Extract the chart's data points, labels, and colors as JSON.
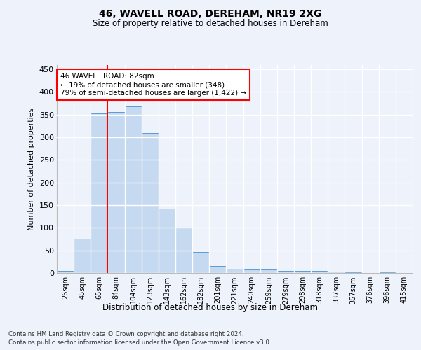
{
  "title1": "46, WAVELL ROAD, DEREHAM, NR19 2XG",
  "title2": "Size of property relative to detached houses in Dereham",
  "xlabel": "Distribution of detached houses by size in Dereham",
  "ylabel": "Number of detached properties",
  "categories": [
    "26sqm",
    "45sqm",
    "65sqm",
    "84sqm",
    "104sqm",
    "123sqm",
    "143sqm",
    "162sqm",
    "182sqm",
    "201sqm",
    "221sqm",
    "240sqm",
    "259sqm",
    "279sqm",
    "298sqm",
    "318sqm",
    "337sqm",
    "357sqm",
    "376sqm",
    "396sqm",
    "415sqm"
  ],
  "values": [
    5,
    75,
    353,
    355,
    368,
    310,
    143,
    100,
    46,
    16,
    10,
    8,
    8,
    4,
    5,
    5,
    3,
    1,
    0,
    1,
    0
  ],
  "bar_color": "#c5d9f0",
  "bar_edge_color": "#5b9bd5",
  "annotation_text": "46 WAVELL ROAD: 82sqm\n← 19% of detached houses are smaller (348)\n79% of semi-detached houses are larger (1,422) →",
  "annotation_box_color": "white",
  "annotation_border_color": "red",
  "red_line_bar_index": 2.5,
  "ylim": [
    0,
    460
  ],
  "yticks": [
    0,
    50,
    100,
    150,
    200,
    250,
    300,
    350,
    400,
    450
  ],
  "footer1": "Contains HM Land Registry data © Crown copyright and database right 2024.",
  "footer2": "Contains public sector information licensed under the Open Government Licence v3.0.",
  "bg_color": "#eef2fb",
  "grid_color": "#ffffff"
}
